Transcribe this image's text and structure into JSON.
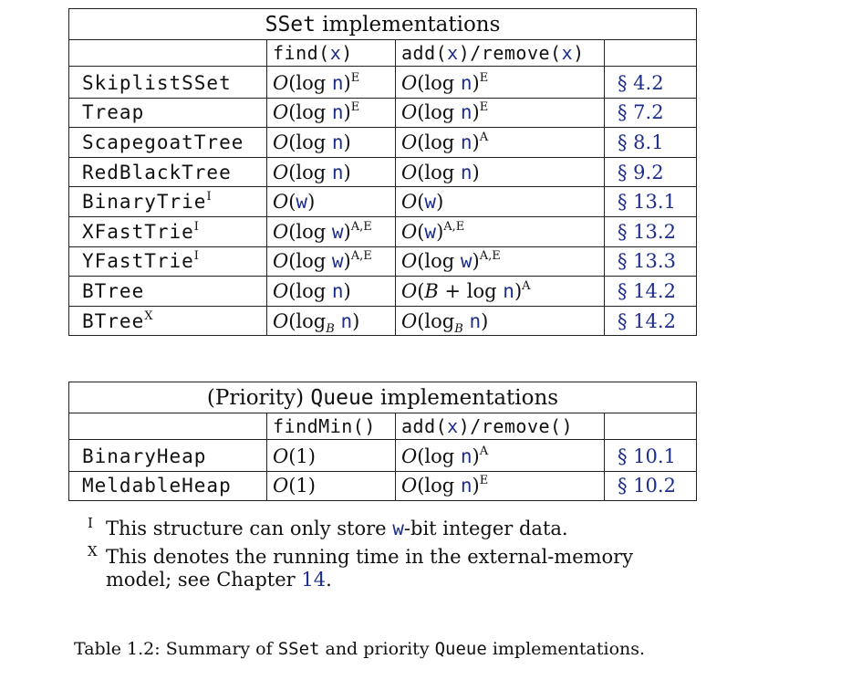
{
  "sset_table": {
    "title": "SSet implementations",
    "headers": {
      "find": "find(x)",
      "add_remove": "add(x)/remove(x)"
    },
    "rows": [
      {
        "name": "SkiplistSSet",
        "name_sup": "",
        "find": "O(log n)",
        "find_sup": "E",
        "add": "O(log n)",
        "add_sup": "E",
        "ref": "§ 4.2"
      },
      {
        "name": "Treap",
        "name_sup": "",
        "find": "O(log n)",
        "find_sup": "E",
        "add": "O(log n)",
        "add_sup": "E",
        "ref": "§ 7.2"
      },
      {
        "name": "ScapegoatTree",
        "name_sup": "",
        "find": "O(log n)",
        "find_sup": "",
        "add": "O(log n)",
        "add_sup": "A",
        "ref": "§ 8.1"
      },
      {
        "name": "RedBlackTree",
        "name_sup": "",
        "find": "O(log n)",
        "find_sup": "",
        "add": "O(log n)",
        "add_sup": "",
        "ref": "§ 9.2"
      },
      {
        "name": "BinaryTrie",
        "name_sup": "I",
        "find": "O(w)",
        "find_sup": "",
        "add": "O(w)",
        "add_sup": "",
        "ref": "§ 13.1"
      },
      {
        "name": "XFastTrie",
        "name_sup": "I",
        "find": "O(log w)",
        "find_sup": "A,E",
        "add": "O(w)",
        "add_sup": "A,E",
        "ref": "§ 13.2"
      },
      {
        "name": "YFastTrie",
        "name_sup": "I",
        "find": "O(log w)",
        "find_sup": "A,E",
        "add": "O(log w)",
        "add_sup": "A,E",
        "ref": "§ 13.3"
      },
      {
        "name": "BTree",
        "name_sup": "",
        "find": "O(log n)",
        "find_sup": "",
        "add": "O(B + log n)",
        "add_sup": "A",
        "ref": "§ 14.2"
      },
      {
        "name": "BTree",
        "name_sup": "X",
        "find": "O(log_B n)",
        "find_sup": "",
        "add": "O(log_B n)",
        "add_sup": "",
        "ref": "§ 14.2"
      }
    ]
  },
  "pq_table": {
    "title": "(Priority) Queue implementations",
    "headers": {
      "find": "findMin()",
      "add_remove": "add(x)/remove()"
    },
    "rows": [
      {
        "name": "BinaryHeap",
        "find": "O(1)",
        "add": "O(log n)",
        "add_sup": "A",
        "ref": "§ 10.1"
      },
      {
        "name": "MeldableHeap",
        "find": "O(1)",
        "add": "O(log n)",
        "add_sup": "E",
        "ref": "§ 10.2"
      }
    ]
  },
  "footnotes": [
    {
      "mark": "I",
      "text": "This structure can only store w-bit integer data."
    },
    {
      "mark": "X",
      "text": "This denotes the running time in the external-memory model; see Chapter 14."
    }
  ],
  "caption": "Table 1.2: Summary of SSet and priority Queue implementations."
}
